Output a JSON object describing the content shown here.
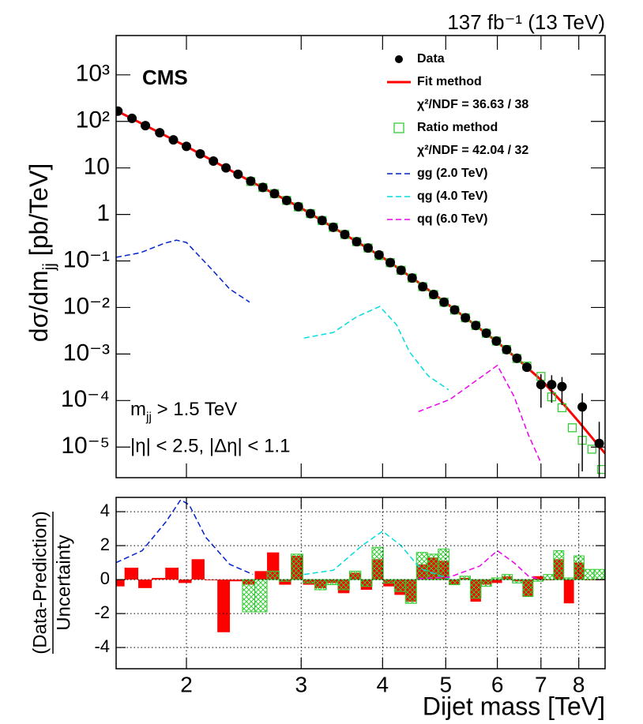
{
  "chart_data": [
    {
      "type": "line",
      "annotations": {
        "lumi": "137 fb⁻¹ (13 TeV)",
        "experiment": "CMS",
        "cut_mass": [
          "m",
          "jj",
          " > 1.5 TeV"
        ],
        "cut_eta": "|η| < 2.5, |Δη| < 1.1"
      },
      "ylabel": [
        "dσ/dm",
        "jj",
        " [pb/TeV]"
      ],
      "log_y": true,
      "ylim": [
        2.2e-06,
        7000
      ],
      "yticks": [
        {
          "value": 1000,
          "label": "10³"
        },
        {
          "value": 100,
          "label": "10²"
        },
        10,
        1,
        {
          "value": 0.1,
          "label": "10⁻¹"
        },
        {
          "value": 0.01,
          "label": "10⁻²"
        },
        {
          "value": 0.001,
          "label": "10⁻³"
        },
        {
          "value": 0.0001,
          "label": "10⁻⁴"
        },
        {
          "value": 1e-05,
          "label": "10⁻⁵"
        }
      ],
      "legend": "upper right",
      "series": [
        {
          "name": "Data",
          "style": "markers",
          "color": "#000000",
          "x": [
            1.57,
            1.65,
            1.73,
            1.82,
            1.91,
            2.0,
            2.1,
            2.2,
            2.3,
            2.4,
            2.51,
            2.62,
            2.73,
            2.85,
            2.97,
            3.1,
            3.23,
            3.36,
            3.5,
            3.65,
            3.8,
            3.95,
            4.11,
            4.27,
            4.44,
            4.61,
            4.79,
            4.97,
            5.16,
            5.36,
            5.56,
            5.77,
            5.98,
            6.2,
            6.43,
            6.66,
            7.0,
            7.27,
            7.54,
            8.1,
            8.6
          ],
          "values": [
            166,
            116,
            81,
            57,
            40,
            29,
            20,
            14,
            10,
            7.3,
            5.2,
            3.8,
            2.8,
            2.0,
            1.47,
            1.04,
            0.74,
            0.53,
            0.37,
            0.26,
            0.19,
            0.135,
            0.092,
            0.063,
            0.043,
            0.028,
            0.019,
            0.013,
            0.0089,
            0.006,
            0.0041,
            0.0028,
            0.0019,
            0.00124,
            0.00081,
            0.00052,
            0.00022,
            0.00022,
            0.0002,
            7.3e-05,
            1.2e-05
          ],
          "errors": [
            null,
            null,
            null,
            null,
            null,
            null,
            null,
            null,
            null,
            null,
            null,
            null,
            null,
            null,
            null,
            null,
            null,
            null,
            null,
            null,
            null,
            null,
            null,
            null,
            null,
            null,
            null,
            null,
            null,
            null,
            null,
            null,
            null,
            null,
            null,
            8e-05,
            0.00015,
            0.00013,
            0.00012,
            7e-05,
            2.3e-05
          ]
        },
        {
          "name": "Fit method",
          "style": "line",
          "color": "#ff0000",
          "chi2_label": "χ²/NDF = 36.63 /  38",
          "x": [
            1.56,
            2,
            2.5,
            3,
            3.5,
            4,
            4.5,
            5,
            5.5,
            6,
            6.5,
            7,
            7.5,
            8,
            8.78
          ],
          "values": [
            172,
            29,
            5.3,
            1.37,
            0.37,
            0.12,
            0.038,
            0.0126,
            0.0046,
            0.0018,
            0.0007,
            0.00028,
            0.0001,
            3.5e-05,
            7.3e-06
          ]
        },
        {
          "name": "Ratio method",
          "style": "open-squares",
          "color": "#33cc33",
          "chi2_label": "χ²/NDF = 42.04 /  32",
          "x": [
            2.51,
            2.62,
            2.73,
            2.85,
            2.97,
            3.1,
            3.23,
            3.36,
            3.5,
            3.65,
            3.8,
            3.95,
            4.11,
            4.27,
            4.44,
            4.61,
            4.79,
            4.97,
            5.16,
            5.36,
            5.56,
            5.77,
            5.98,
            6.2,
            6.43,
            6.66,
            7.0,
            7.27,
            7.54,
            7.82,
            8.1,
            8.38,
            8.67
          ],
          "values": [
            5.1,
            3.8,
            2.8,
            2.0,
            1.45,
            1.04,
            0.74,
            0.53,
            0.37,
            0.26,
            0.19,
            0.13,
            0.092,
            0.063,
            0.043,
            0.028,
            0.019,
            0.013,
            0.0088,
            0.006,
            0.0041,
            0.0028,
            0.0019,
            0.00125,
            0.0008,
            0.00055,
            0.00033,
            0.00012,
            7e-05,
            2.6e-05,
            1.4e-05,
            9e-06,
            3.3e-06
          ]
        },
        {
          "name": "gg (2.0 TeV)",
          "style": "dashed",
          "color": "#0022cc",
          "x": [
            1.56,
            1.7,
            1.85,
            1.93,
            2.0,
            2.19,
            2.33,
            2.5
          ],
          "values": [
            0.12,
            0.15,
            0.24,
            0.28,
            0.25,
            0.065,
            0.025,
            0.013
          ]
        },
        {
          "name": "qg (4.0 TeV)",
          "style": "dashed",
          "color": "#00dddd",
          "x": [
            3.03,
            3.36,
            3.65,
            3.96,
            4.2,
            4.4,
            4.7,
            5.05
          ],
          "values": [
            0.0022,
            0.0029,
            0.0063,
            0.0105,
            0.0043,
            0.0011,
            0.00034,
            0.00017
          ]
        },
        {
          "name": "qq (6.0 TeV)",
          "style": "dashed",
          "color": "#ee00ee",
          "x": [
            4.54,
            5.07,
            5.57,
            6.0,
            6.36,
            6.7,
            7.0
          ],
          "values": [
            5.8e-05,
            0.000105,
            0.00027,
            0.00057,
            0.000125,
            1.8e-05,
            4.6e-06
          ]
        }
      ]
    },
    {
      "type": "histogram",
      "xlabel": "Dijet mass [TeV]",
      "ylabel": [
        "(Data-Prediction)",
        "Uncertainty"
      ],
      "log_x": true,
      "xlim": [
        1.56,
        8.78
      ],
      "xticks": [
        2,
        3,
        4,
        5,
        6,
        7,
        8
      ],
      "ylim": [
        -5.25,
        4.84
      ],
      "yticks": [
        -4,
        -2,
        0,
        2,
        4
      ],
      "grid": true,
      "series": [
        {
          "style": "filled",
          "color": "#ff0000",
          "bins": [
            1.53,
            1.607,
            1.687,
            1.77,
            1.856,
            1.945,
            2.037,
            2.132,
            2.231,
            2.332,
            2.438,
            2.546,
            2.659,
            2.775,
            2.895,
            3.019,
            3.147,
            3.279,
            3.416,
            3.558,
            3.704,
            3.854,
            4.01,
            4.171,
            4.337,
            4.509,
            4.686,
            4.869,
            5.058,
            5.253,
            5.455,
            5.663,
            5.877,
            6.099,
            6.328,
            6.564,
            6.808,
            7.06,
            7.32,
            7.589,
            7.866,
            8.152,
            8.447,
            8.752
          ],
          "values": [
            -0.4,
            0.7,
            -0.5,
            0.1,
            0.7,
            -0.2,
            1.2,
            0.0,
            -3.1,
            -0.1,
            -0.3,
            0.5,
            1.6,
            -0.3,
            1.4,
            -0.3,
            -0.5,
            -0.2,
            -0.8,
            0.4,
            -0.6,
            1.2,
            -0.4,
            -0.9,
            -1.3,
            0.9,
            1.3,
            1.1,
            -0.3,
            0.1,
            -1.3,
            -0.3,
            -0.2,
            0.2,
            -0.1,
            -1.0,
            0.2,
            0.0,
            1.2,
            -1.4,
            1.0,
            0.0,
            0.0
          ]
        },
        {
          "style": "hatched",
          "color": "#33cc33",
          "bins": [
            2.438,
            2.546,
            2.659,
            2.775,
            2.895,
            3.019,
            3.147,
            3.279,
            3.416,
            3.558,
            3.704,
            3.854,
            4.01,
            4.171,
            4.337,
            4.509,
            4.686,
            4.869,
            5.058,
            5.253,
            5.455,
            5.663,
            5.877,
            6.099,
            6.328,
            6.564,
            6.808,
            7.06,
            7.32,
            7.589,
            7.866,
            8.152,
            8.447,
            8.752
          ],
          "values": [
            -1.9,
            -1.9,
            0.5,
            -0.1,
            1.5,
            -0.2,
            -0.6,
            -0.3,
            -0.6,
            0.5,
            -0.4,
            1.9,
            -0.2,
            -0.7,
            -1.4,
            1.6,
            1.5,
            1.8,
            -0.3,
            0.2,
            -1.1,
            -0.4,
            0.1,
            0.3,
            -0.2,
            -1.0,
            -0.1,
            0.3,
            1.7,
            0.1,
            1.4,
            0.6,
            0.6
          ]
        }
      ],
      "curves": [
        {
          "color": "#0022cc",
          "x": [
            1.56,
            1.71,
            1.86,
            1.96,
            2.02,
            2.14,
            2.33,
            2.53
          ],
          "values": [
            1.0,
            1.7,
            3.4,
            4.7,
            4.4,
            2.5,
            0.9,
            0.3
          ]
        },
        {
          "color": "#00dddd",
          "x": [
            3.03,
            3.36,
            3.72,
            4.0,
            4.27,
            4.57,
            5.05
          ],
          "values": [
            0.3,
            0.55,
            2.0,
            2.85,
            2.0,
            0.65,
            0.05
          ]
        },
        {
          "color": "#ee00ee",
          "x": [
            4.54,
            5.07,
            5.64,
            6.0,
            6.36,
            6.7,
            7.0
          ],
          "values": [
            0.05,
            0.15,
            0.8,
            1.7,
            1.0,
            0.2,
            0
          ]
        }
      ]
    }
  ]
}
